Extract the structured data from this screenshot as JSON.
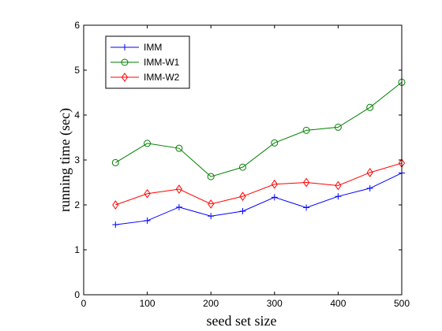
{
  "chart_data": {
    "type": "line",
    "xlabel": "seed set size",
    "ylabel": "running time (sec)",
    "xlim": [
      0,
      500
    ],
    "ylim": [
      0,
      6
    ],
    "xticks": [
      0,
      100,
      200,
      300,
      400,
      500
    ],
    "yticks": [
      0,
      1,
      2,
      3,
      4,
      5,
      6
    ],
    "grid": false,
    "legend_position": "top-left",
    "x": [
      50,
      100,
      150,
      200,
      250,
      300,
      350,
      400,
      450,
      500
    ],
    "series": [
      {
        "name": "IMM",
        "color": "#0000ff",
        "marker": "plus",
        "values": [
          1.56,
          1.65,
          1.95,
          1.75,
          1.86,
          2.17,
          1.94,
          2.19,
          2.37,
          2.71
        ]
      },
      {
        "name": "IMM-W1",
        "color": "#008000",
        "marker": "circle",
        "values": [
          2.94,
          3.37,
          3.26,
          2.63,
          2.84,
          3.38,
          3.66,
          3.73,
          4.17,
          4.73
        ]
      },
      {
        "name": "IMM-W2",
        "color": "#ff0000",
        "marker": "diamond",
        "values": [
          2.0,
          2.25,
          2.35,
          2.02,
          2.19,
          2.46,
          2.5,
          2.43,
          2.72,
          2.93
        ]
      }
    ]
  }
}
